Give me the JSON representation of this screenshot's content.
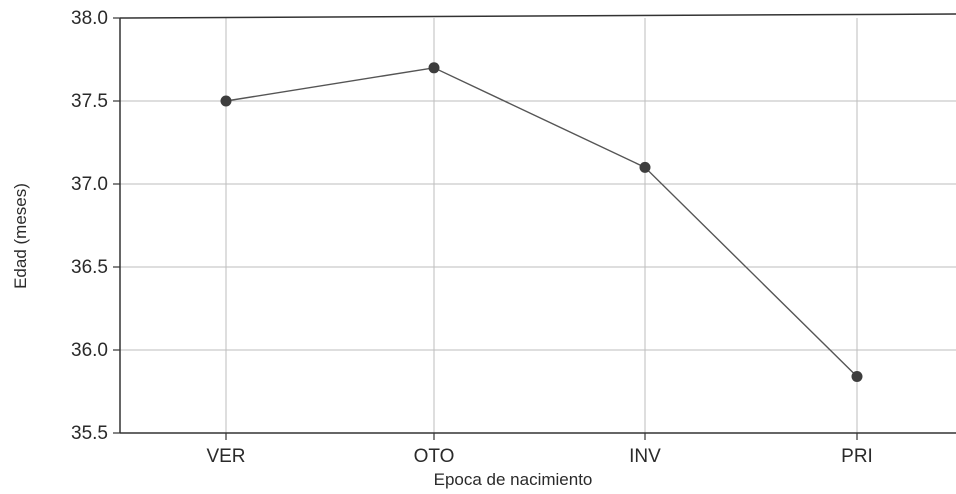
{
  "chart_data": {
    "type": "line",
    "title": "",
    "xlabel": "Epoca de nacimiento",
    "ylabel": "Edad (meses)",
    "categories": [
      "VER",
      "OTO",
      "INV",
      "PRI"
    ],
    "values": [
      37.5,
      37.7,
      37.1,
      35.84
    ],
    "ylim": [
      35.5,
      38.0
    ],
    "yticks": [
      "35.5",
      "36.0",
      "36.5",
      "37.0",
      "37.5",
      "38.0"
    ],
    "grid": true,
    "colors": {
      "line": "#555555",
      "marker": "#3d3d3d",
      "grid": "#bdbdbd",
      "axis": "#333333"
    }
  }
}
